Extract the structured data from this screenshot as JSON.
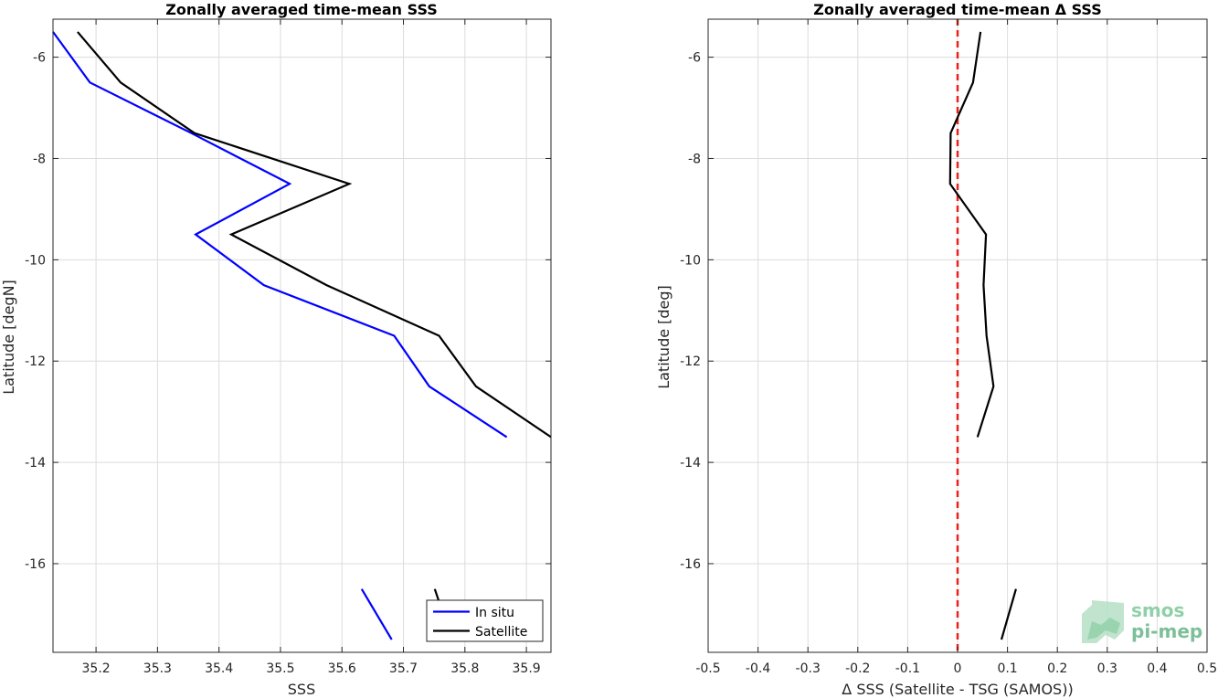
{
  "chart_data": [
    {
      "type": "line",
      "title": "Zonally averaged time-mean SSS",
      "xlabel": "SSS",
      "ylabel": "Latitude [degN]",
      "xlim": [
        35.13,
        35.94
      ],
      "ylim": [
        -17.75,
        -5.25
      ],
      "xticks": [
        35.2,
        35.3,
        35.4,
        35.5,
        35.6,
        35.7,
        35.8,
        35.9
      ],
      "xtick_labels": [
        "35.2",
        "35.3",
        "35.4",
        "35.5",
        "35.6",
        "35.7",
        "35.8",
        "35.9"
      ],
      "yticks": [
        -16,
        -14,
        -12,
        -10,
        -8,
        -6
      ],
      "ytick_labels": [
        "-16",
        "-14",
        "-12",
        "-10",
        "-8",
        "-6"
      ],
      "grid": true,
      "legend_position": "bottom-right",
      "series": [
        {
          "name": "In situ",
          "color": "#0000ff",
          "segments": [
            [
              [
                35.13,
                -5.5
              ],
              [
                35.19,
                -6.5
              ],
              [
                35.355,
                -7.5
              ],
              [
                35.515,
                -8.5
              ],
              [
                35.362,
                -9.5
              ],
              [
                35.473,
                -10.5
              ],
              [
                35.685,
                -11.5
              ],
              [
                35.742,
                -12.5
              ],
              [
                35.868,
                -13.5
              ]
            ],
            [
              [
                35.632,
                -16.5
              ],
              [
                35.681,
                -17.5
              ]
            ]
          ]
        },
        {
          "name": "Satellite",
          "color": "#000000",
          "segments": [
            [
              [
                35.17,
                -5.5
              ],
              [
                35.24,
                -6.5
              ],
              [
                35.36,
                -7.5
              ],
              [
                35.612,
                -8.5
              ],
              [
                35.42,
                -9.5
              ],
              [
                35.575,
                -10.5
              ],
              [
                35.758,
                -11.5
              ],
              [
                35.818,
                -12.5
              ],
              [
                35.94,
                -13.5
              ]
            ],
            [
              [
                35.751,
                -16.5
              ],
              [
                35.758,
                -16.75
              ]
            ]
          ]
        }
      ]
    },
    {
      "type": "line",
      "title": "Zonally averaged time-mean Δ SSS",
      "xlabel": "Δ SSS (Satellite - TSG (SAMOS))",
      "ylabel": "Latitude [deg]",
      "xlim": [
        -0.5,
        0.5
      ],
      "ylim": [
        -17.75,
        -5.25
      ],
      "xticks": [
        -0.5,
        -0.4,
        -0.3,
        -0.2,
        -0.1,
        0,
        0.1,
        0.2,
        0.3,
        0.4,
        0.5
      ],
      "xtick_labels": [
        "-0.5",
        "-0.4",
        "-0.3",
        "-0.2",
        "-0.1",
        "0",
        "0.1",
        "0.2",
        "0.3",
        "0.4",
        "0.5"
      ],
      "yticks": [
        -16,
        -14,
        -12,
        -10,
        -8,
        -6
      ],
      "ytick_labels": [
        "-16",
        "-14",
        "-12",
        "-10",
        "-8",
        "-6"
      ],
      "grid": true,
      "reference_line": {
        "x": 0,
        "color": "#e8221c",
        "style": "dashed"
      },
      "series": [
        {
          "color": "#000000",
          "segments": [
            [
              [
                0.046,
                -5.5
              ],
              [
                0.031,
                -6.5
              ],
              [
                -0.014,
                -7.5
              ],
              [
                -0.015,
                -8.5
              ],
              [
                0.057,
                -9.5
              ],
              [
                0.052,
                -10.5
              ],
              [
                0.058,
                -11.5
              ],
              [
                0.072,
                -12.5
              ],
              [
                0.04,
                -13.5
              ]
            ],
            [
              [
                0.117,
                -16.5
              ],
              [
                0.088,
                -17.5
              ]
            ]
          ]
        }
      ]
    }
  ],
  "logo": {
    "line1": "smos",
    "line2": "pi-mep"
  }
}
